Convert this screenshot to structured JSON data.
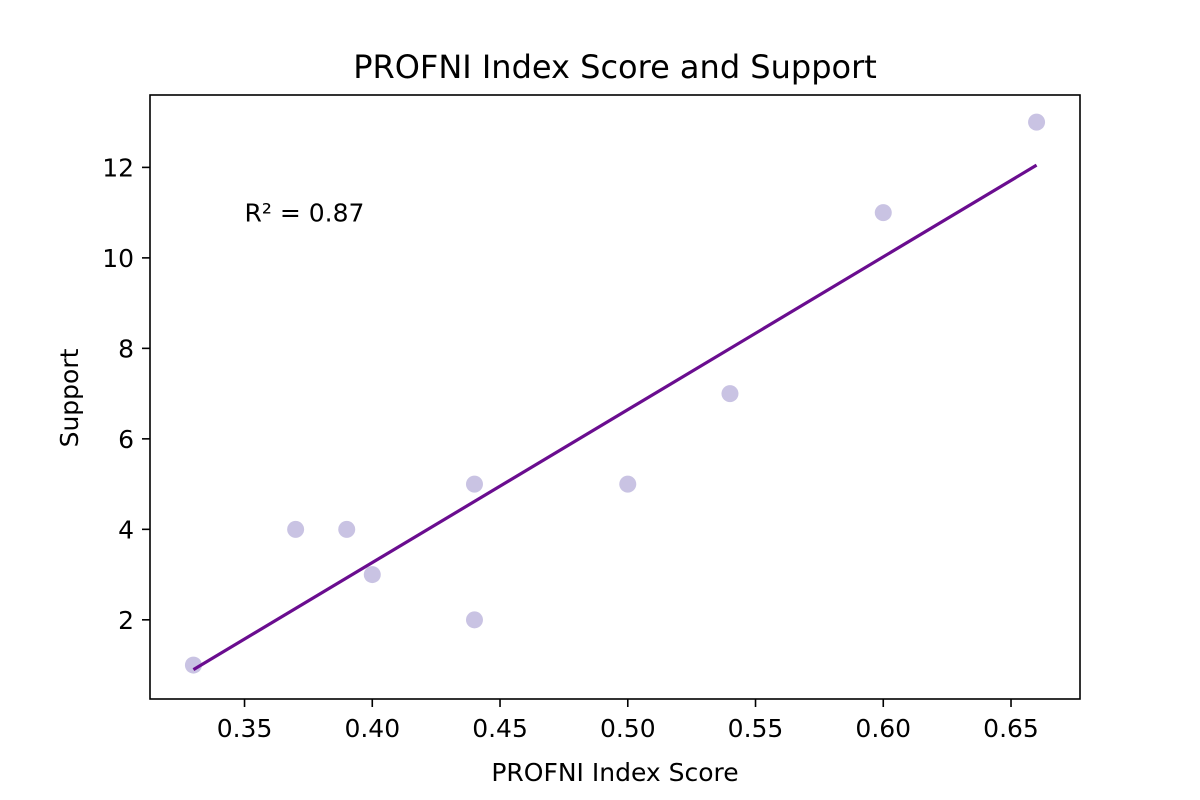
{
  "chart_data": {
    "type": "scatter",
    "title": "PROFNI Index Score and Support",
    "xlabel": "PROFNI Index Score",
    "ylabel": "Support",
    "xlim": [
      0.313,
      0.677
    ],
    "ylim": [
      0.25,
      13.6
    ],
    "x_ticks": [
      0.35,
      0.4,
      0.45,
      0.5,
      0.55,
      0.6,
      0.65
    ],
    "x_tick_labels": [
      "0.35",
      "0.40",
      "0.45",
      "0.50",
      "0.55",
      "0.60",
      "0.65"
    ],
    "y_ticks": [
      2,
      4,
      6,
      8,
      10,
      12
    ],
    "y_tick_labels": [
      "2",
      "4",
      "6",
      "8",
      "10",
      "12"
    ],
    "grid": false,
    "legend": null,
    "series": [
      {
        "type": "scatter",
        "color": "#c9c3e3",
        "points": [
          {
            "x": 0.33,
            "y": 1
          },
          {
            "x": 0.37,
            "y": 4
          },
          {
            "x": 0.39,
            "y": 4
          },
          {
            "x": 0.4,
            "y": 3
          },
          {
            "x": 0.44,
            "y": 5
          },
          {
            "x": 0.44,
            "y": 2
          },
          {
            "x": 0.5,
            "y": 5
          },
          {
            "x": 0.54,
            "y": 7
          },
          {
            "x": 0.6,
            "y": 11
          },
          {
            "x": 0.66,
            "y": 13
          }
        ]
      },
      {
        "type": "line",
        "color": "#6a0d8f",
        "points": [
          {
            "x": 0.33,
            "y": 0.9
          },
          {
            "x": 0.66,
            "y": 12.05
          }
        ]
      }
    ],
    "annotations": [
      {
        "text": "R² = 0.87",
        "x": 0.35,
        "y": 11.0
      }
    ]
  }
}
